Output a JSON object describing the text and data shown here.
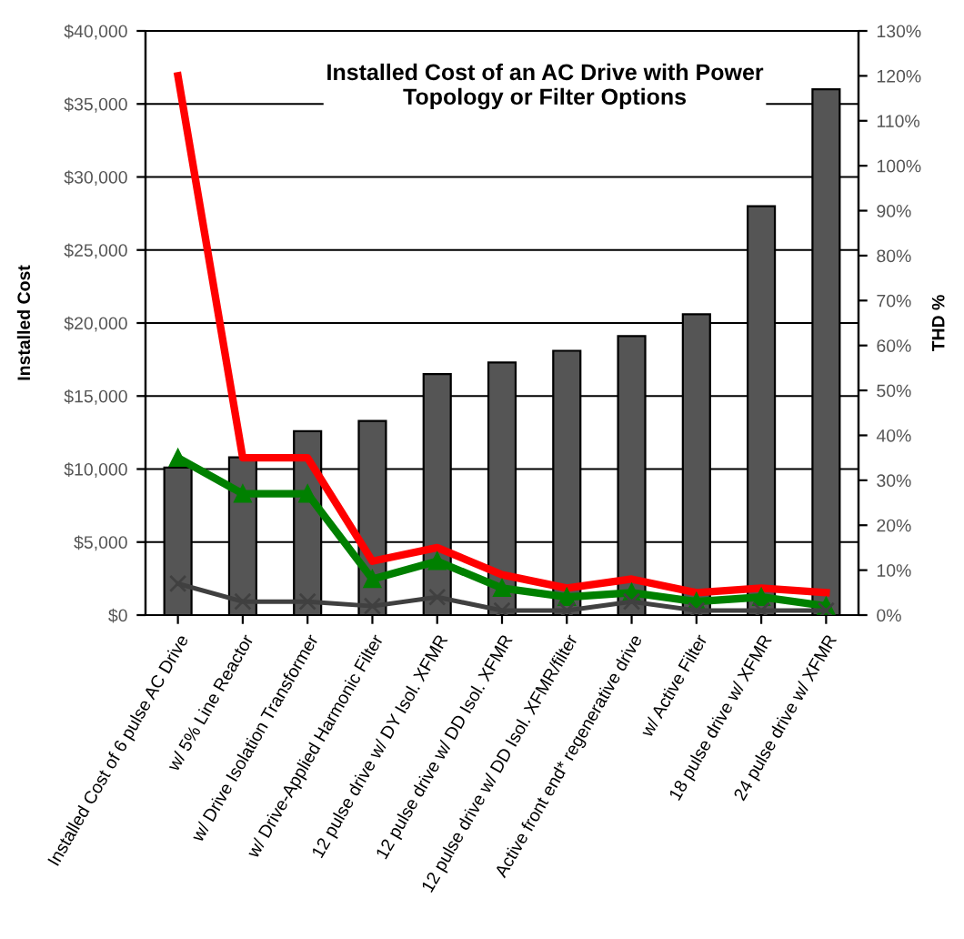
{
  "chart_data": {
    "type": "bar",
    "title": "Installed Cost of an AC Drive with Power\nTopology or Filter Options",
    "ylabel": "Installed Cost",
    "y2label": "THD %",
    "categories": [
      "Installed Cost of 6 pulse AC Drive",
      "w/ 5% Line Reactor",
      "w/ Drive Isolation Transformer",
      "w/ Drive-Applied Harmonic Filter",
      "12 pulse drive w/ DY Isol. XFMR",
      "12 pulse drive w/ DD Isol. XFMR",
      "12 pulse drive w/ DD Isol. XFMR/filter",
      "Active front end* regenerative drive",
      "w/ Active Filter",
      "18 pulse drive w/ XFMR",
      "24 pulse drive w/ XFMR"
    ],
    "series": [
      {
        "color": "#555555",
        "values": [
          10100,
          10800,
          12600,
          13300,
          16500,
          17300,
          18100,
          19100,
          20600,
          28000,
          36000
        ]
      },
      {
        "type": "line",
        "axis": "y2",
        "color": "#ff0000",
        "marker": "none",
        "values": [
          120,
          35,
          35,
          12,
          15,
          9,
          6,
          8,
          5,
          6,
          5
        ]
      },
      {
        "type": "line",
        "axis": "y2",
        "color": "#008000",
        "marker": "triangle",
        "values": [
          35,
          27,
          27,
          8,
          12,
          6,
          4,
          5,
          3,
          4,
          2
        ]
      },
      {
        "type": "line",
        "axis": "y2",
        "color": "#404040",
        "marker": "cross",
        "values": [
          7,
          3,
          3,
          2,
          4,
          1,
          1,
          3,
          1,
          1,
          1
        ]
      }
    ],
    "ylim": [
      0,
      40000
    ],
    "yticks": [
      {
        "value": 0,
        "label": "$0"
      },
      {
        "value": 5000,
        "label": "$5,000"
      },
      {
        "value": 10000,
        "label": "$10,000"
      },
      {
        "value": 15000,
        "label": "$15,000"
      },
      {
        "value": 20000,
        "label": "$20,000"
      },
      {
        "value": 25000,
        "label": "$25,000"
      },
      {
        "value": 30000,
        "label": "$30,000"
      },
      {
        "value": 35000,
        "label": "$35,000"
      },
      {
        "value": 40000,
        "label": "$40,000"
      }
    ],
    "y2lim": [
      0,
      130
    ],
    "y2ticks": [
      {
        "value": 0,
        "label": "0%"
      },
      {
        "value": 10,
        "label": "10%"
      },
      {
        "value": 20,
        "label": "20%"
      },
      {
        "value": 30,
        "label": "30%"
      },
      {
        "value": 40,
        "label": "40%"
      },
      {
        "value": 50,
        "label": "50%"
      },
      {
        "value": 60,
        "label": "60%"
      },
      {
        "value": 70,
        "label": "70%"
      },
      {
        "value": 80,
        "label": "80%"
      },
      {
        "value": 90,
        "label": "90%"
      },
      {
        "value": 100,
        "label": "100%"
      },
      {
        "value": 110,
        "label": "110%"
      },
      {
        "value": 120,
        "label": "120%"
      },
      {
        "value": 130,
        "label": "130%"
      }
    ],
    "grid": "y",
    "legend": false,
    "line_style": "solid"
  }
}
